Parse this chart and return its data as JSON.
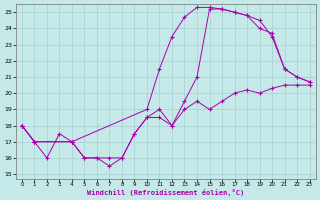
{
  "xlabel": "Windchill (Refroidissement éolien,°C)",
  "xlim_min": -0.5,
  "xlim_max": 23.5,
  "ylim_min": 14.7,
  "ylim_max": 25.5,
  "xticks": [
    0,
    1,
    2,
    3,
    4,
    5,
    6,
    7,
    8,
    9,
    10,
    11,
    12,
    13,
    14,
    15,
    16,
    17,
    18,
    19,
    20,
    21,
    22,
    23
  ],
  "yticks": [
    15,
    16,
    17,
    18,
    19,
    20,
    21,
    22,
    23,
    24,
    25
  ],
  "bg_color": "#c5e8e8",
  "grid_color": "#a8d0d0",
  "line_color": "#aa00aa",
  "line1_x": [
    0,
    1,
    2,
    3,
    4,
    5,
    6,
    7,
    8,
    9,
    10,
    11,
    12,
    13,
    14,
    15,
    16,
    17,
    18,
    19,
    20,
    21,
    22,
    23
  ],
  "line1_y": [
    18,
    17,
    16,
    17.5,
    17,
    16,
    16,
    15.5,
    16,
    17.5,
    18.5,
    19,
    18,
    19,
    19.5,
    19,
    19.5,
    20,
    20.2,
    20,
    20.3,
    20.5,
    20.5,
    20.5
  ],
  "line2_x": [
    0,
    1,
    4,
    10,
    11,
    12,
    13,
    14,
    15,
    16,
    17,
    18,
    19,
    20,
    21,
    22,
    23
  ],
  "line2_y": [
    18,
    17,
    17,
    19,
    21.5,
    23.5,
    24.7,
    25.3,
    25.3,
    25.2,
    25,
    24.8,
    24,
    23.7,
    21.5,
    21,
    20.7
  ],
  "line3_x": [
    0,
    1,
    4,
    5,
    6,
    7,
    8,
    9,
    10,
    11,
    12,
    13,
    14,
    15,
    16,
    17,
    18,
    19,
    20,
    21,
    22,
    23
  ],
  "line3_y": [
    18,
    17,
    17,
    16,
    16,
    16,
    16,
    17.5,
    18.5,
    18.5,
    18,
    19.5,
    21,
    25.2,
    25.2,
    25,
    24.8,
    24.5,
    23.5,
    21.5,
    21,
    20.7
  ]
}
